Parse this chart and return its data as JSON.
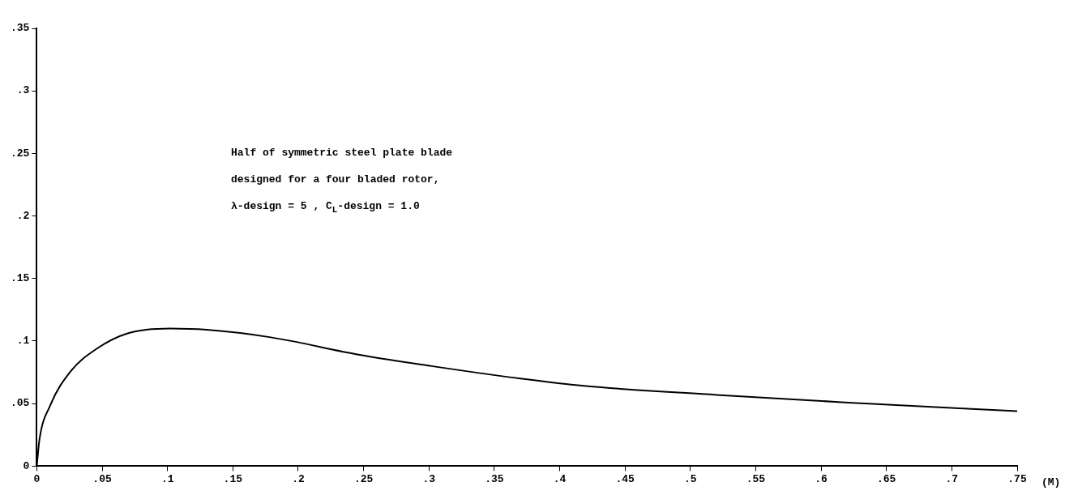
{
  "chart_data": {
    "type": "line",
    "xlabel": "(M)",
    "annotations": [
      "Half of symmetric steel plate blade\ndesigned for a four bladed rotor,\nλ-design = 5 , C$_{L}$-design = 1.0"
    ],
    "xlim": [
      0,
      0.75
    ],
    "ylim": [
      0,
      0.35
    ],
    "xticks": [
      0,
      {
        "value": 0.05,
        "label": ".05"
      },
      {
        "value": 0.1,
        "label": ".1"
      },
      {
        "value": 0.15,
        "label": ".15"
      },
      {
        "value": 0.2,
        "label": ".2"
      },
      {
        "value": 0.25,
        "label": ".25"
      },
      {
        "value": 0.3,
        "label": ".3"
      },
      {
        "value": 0.35,
        "label": ".35"
      },
      {
        "value": 0.4,
        "label": ".4"
      },
      {
        "value": 0.45,
        "label": ".45"
      },
      {
        "value": 0.5,
        "label": ".5"
      },
      {
        "value": 0.55,
        "label": ".55"
      },
      {
        "value": 0.6,
        "label": ".6"
      },
      {
        "value": 0.65,
        "label": ".65"
      },
      {
        "value": 0.7,
        "label": ".7"
      },
      {
        "value": 0.75,
        "label": ".75"
      }
    ],
    "yticks": [
      0,
      {
        "value": 0.05,
        "label": ".05"
      },
      {
        "value": 0.1,
        "label": ".1"
      },
      {
        "value": 0.15,
        "label": ".15"
      },
      {
        "value": 0.2,
        "label": ".2"
      },
      {
        "value": 0.25,
        "label": ".25"
      },
      {
        "value": 0.3,
        "label": ".3"
      },
      {
        "value": 0.35,
        "label": ".35"
      }
    ],
    "grid": false,
    "legend": false,
    "marker": "none",
    "line_style": "solid",
    "series": [
      {
        "color": "#000000",
        "x": [
          0,
          0.002,
          0.01,
          0.026,
          0.046,
          0.069,
          0.102,
          0.13,
          0.179,
          0.247,
          0.302,
          0.37,
          0.42,
          0.52,
          0.618,
          0.75
        ],
        "values": [
          0,
          0.021,
          0.048,
          0.076,
          0.094,
          0.106,
          0.11,
          0.109,
          0.103,
          0.089,
          0.08,
          0.07,
          0.064,
          0.057,
          0.051,
          0.044
        ]
      }
    ]
  }
}
